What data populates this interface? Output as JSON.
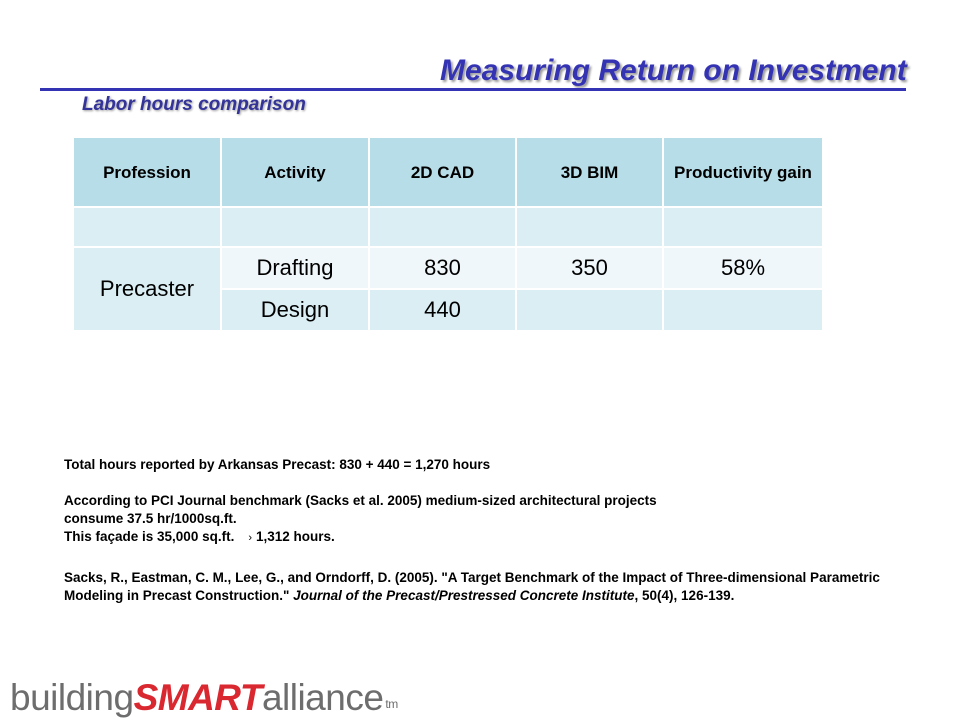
{
  "slide": {
    "title": "Measuring Return on Investment",
    "subtitle": "Labor hours comparison"
  },
  "table": {
    "headers": [
      "Profession",
      "Activity",
      "2D CAD",
      "3D BIM",
      "Productivity gain"
    ],
    "profession": "Precaster",
    "rows": [
      {
        "activity": "Drafting",
        "cad_2d": "830",
        "bim_3d": "350",
        "gain": "58%"
      },
      {
        "activity": "Design",
        "cad_2d": "440",
        "bim_3d": "",
        "gain": ""
      }
    ]
  },
  "notes": {
    "total_hours": "Total hours reported by Arkansas Precast: 830 + 440 = 1,270 hours",
    "benchmark_line1": "According to PCI Journal benchmark (Sacks et al. 2005) medium-sized architectural projects",
    "benchmark_line2": "consume 37.5 hr/1000sq.ft.",
    "facade_text": "This façade is 35,000 sq.ft.",
    "arrow": "›",
    "facade_result": "1,312 hours.",
    "reference_main": "Sacks, R., Eastman, C. M., Lee, G., and Orndorff, D. (2005). \"A Target Benchmark of the Impact of Three-dimensional Parametric Modeling in Precast Construction.\" ",
    "reference_journal": "Journal of the Precast/Prestressed Concrete Institute",
    "reference_tail": ", 50(4), 126-139."
  },
  "logo": {
    "part1": "building",
    "part2": "SMART",
    "part3": "alliance",
    "tm": "tm"
  },
  "colors": {
    "title": "#3333b3",
    "header_fill": "#b7dde8",
    "row_fill": "#daeef3",
    "logo_red": "#d9282f"
  }
}
